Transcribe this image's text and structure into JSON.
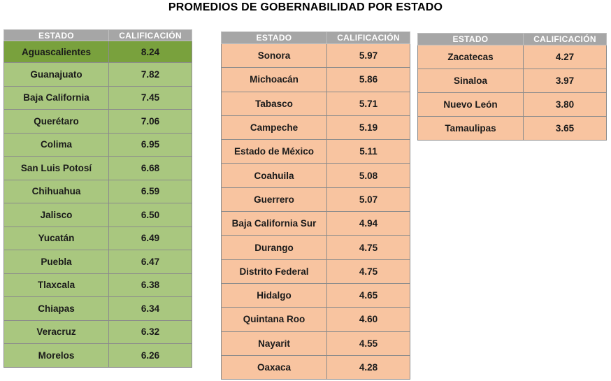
{
  "title": "PROMEDIOS DE GOBERNABILIDAD POR ESTADO",
  "headers": {
    "estado": "ESTADO",
    "calificacion": "CALIFICACIÓN"
  },
  "colors": {
    "green": "#a9c77f",
    "green_highlight": "#79a13d",
    "orange": "#f8c4a0",
    "header": "#a6a6a6"
  },
  "table1": [
    {
      "estado": "Aguascalientes",
      "calificacion": "8.24"
    },
    {
      "estado": "Guanajuato",
      "calificacion": "7.82"
    },
    {
      "estado": "Baja California",
      "calificacion": "7.45"
    },
    {
      "estado": "Querétaro",
      "calificacion": "7.06"
    },
    {
      "estado": "Colima",
      "calificacion": "6.95"
    },
    {
      "estado": "San Luis Potosí",
      "calificacion": "6.68"
    },
    {
      "estado": "Chihuahua",
      "calificacion": "6.59"
    },
    {
      "estado": "Jalisco",
      "calificacion": "6.50"
    },
    {
      "estado": "Yucatán",
      "calificacion": "6.49"
    },
    {
      "estado": "Puebla",
      "calificacion": "6.47"
    },
    {
      "estado": "Tlaxcala",
      "calificacion": "6.38"
    },
    {
      "estado": "Chiapas",
      "calificacion": "6.34"
    },
    {
      "estado": "Veracruz",
      "calificacion": "6.32"
    },
    {
      "estado": "Morelos",
      "calificacion": "6.26"
    }
  ],
  "table2": [
    {
      "estado": "Sonora",
      "calificacion": "5.97"
    },
    {
      "estado": "Michoacán",
      "calificacion": "5.86"
    },
    {
      "estado": "Tabasco",
      "calificacion": "5.71"
    },
    {
      "estado": "Campeche",
      "calificacion": "5.19"
    },
    {
      "estado": "Estado de México",
      "calificacion": "5.11"
    },
    {
      "estado": "Coahuila",
      "calificacion": "5.08"
    },
    {
      "estado": "Guerrero",
      "calificacion": "5.07"
    },
    {
      "estado": "Baja California Sur",
      "calificacion": "4.94"
    },
    {
      "estado": "Durango",
      "calificacion": "4.75"
    },
    {
      "estado": "Distrito Federal",
      "calificacion": "4.75"
    },
    {
      "estado": "Hidalgo",
      "calificacion": "4.65"
    },
    {
      "estado": "Quintana Roo",
      "calificacion": "4.60"
    },
    {
      "estado": "Nayarit",
      "calificacion": "4.55"
    },
    {
      "estado": "Oaxaca",
      "calificacion": "4.28"
    }
  ],
  "table3": [
    {
      "estado": "Zacatecas",
      "calificacion": "4.27"
    },
    {
      "estado": "Sinaloa",
      "calificacion": "3.97"
    },
    {
      "estado": "Nuevo León",
      "calificacion": "3.80"
    },
    {
      "estado": "Tamaulipas",
      "calificacion": "3.65"
    }
  ]
}
